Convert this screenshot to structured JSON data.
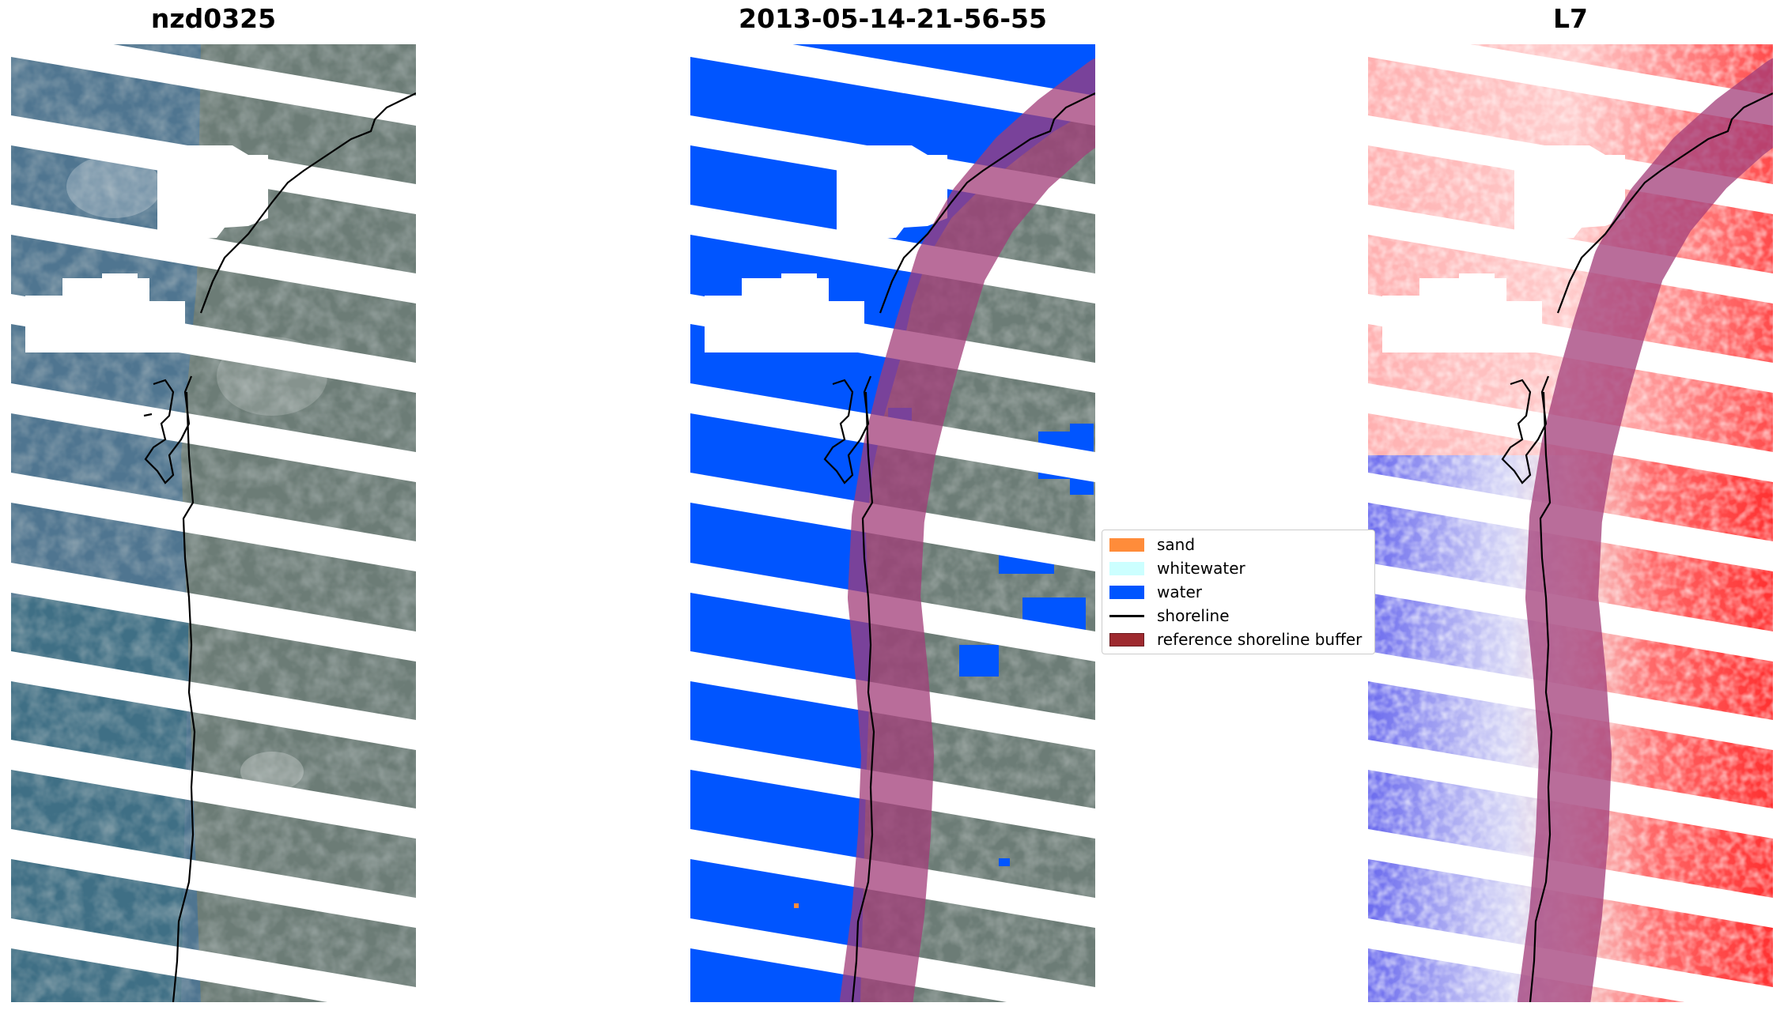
{
  "panels": [
    {
      "title": "nzd0325"
    },
    {
      "title": "2013-05-14-21-56-55"
    },
    {
      "title": "L7"
    }
  ],
  "legend": {
    "items": [
      {
        "label": "sand",
        "kind": "patch",
        "color": "#ff8c3a",
        "edge": "#ff8c3a"
      },
      {
        "label": "whitewater",
        "kind": "patch",
        "color": "#ccffff",
        "edge": "#ccffff"
      },
      {
        "label": "water",
        "kind": "patch",
        "color": "#0055ff",
        "edge": "#0055ff"
      },
      {
        "label": "shoreline",
        "kind": "line",
        "color": "#000000"
      },
      {
        "label": "reference shoreline buffer",
        "kind": "patch",
        "color": "#9e2a2f",
        "edge": "#6b1a1f"
      }
    ]
  },
  "colors": {
    "ocean": "#4e7896",
    "land": "#6c7c76",
    "water_class": "#0055ff",
    "buffer": "#a23c78",
    "index_positive": "#ff2020",
    "index_negative": "#3a3adc"
  }
}
